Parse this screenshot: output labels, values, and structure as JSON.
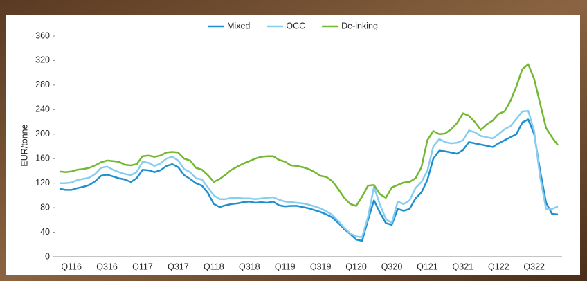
{
  "chart_data": {
    "type": "line",
    "y_label": "EUR/tonne",
    "categories": [
      null,
      null,
      "Q116",
      null,
      null,
      null,
      null,
      null,
      "Q316",
      null,
      null,
      null,
      null,
      null,
      "Q117",
      null,
      null,
      null,
      null,
      null,
      "Q317",
      null,
      null,
      null,
      null,
      null,
      "Q118",
      null,
      null,
      null,
      null,
      null,
      "Q318",
      null,
      null,
      null,
      null,
      null,
      "Q119",
      null,
      null,
      null,
      null,
      null,
      "Q319",
      null,
      null,
      null,
      null,
      null,
      "Q120",
      null,
      null,
      null,
      null,
      null,
      "Q320",
      null,
      null,
      null,
      null,
      null,
      "Q121",
      null,
      null,
      null,
      null,
      null,
      "Q321",
      null,
      null,
      null,
      null,
      null,
      "Q122",
      null,
      null,
      null,
      null,
      null,
      "Q322",
      null,
      null,
      null,
      null
    ],
    "series": [
      {
        "name": "Mixed",
        "color": "#1f8fcf",
        "values": [
          111,
          109,
          109,
          112,
          114,
          117,
          123,
          132,
          134,
          131,
          128,
          126,
          122,
          128,
          142,
          141,
          138,
          141,
          148,
          151,
          146,
          133,
          127,
          120,
          116,
          104,
          86,
          81,
          84,
          86,
          87,
          89,
          90,
          88,
          89,
          88,
          90,
          84,
          82,
          83,
          83,
          81,
          79,
          76,
          73,
          69,
          64,
          55,
          45,
          37,
          28,
          26,
          60,
          92,
          72,
          55,
          52,
          78,
          75,
          78,
          95,
          105,
          125,
          160,
          173,
          172,
          170,
          168,
          174,
          187,
          185,
          183,
          181,
          179,
          185,
          190,
          195,
          200,
          219,
          224,
          200,
          140,
          88,
          70,
          69
        ]
      },
      {
        "name": "OCC",
        "color": "#86cdf0",
        "values": [
          120,
          120,
          121,
          125,
          127,
          129,
          135,
          145,
          147,
          142,
          138,
          135,
          133,
          138,
          155,
          153,
          148,
          152,
          160,
          163,
          157,
          143,
          138,
          128,
          126,
          113,
          100,
          94,
          94,
          96,
          96,
          95,
          95,
          94,
          95,
          96,
          97,
          93,
          90,
          89,
          88,
          87,
          85,
          82,
          79,
          74,
          68,
          58,
          47,
          38,
          33,
          32,
          65,
          114,
          85,
          62,
          55,
          90,
          86,
          92,
          112,
          122,
          140,
          180,
          192,
          187,
          185,
          186,
          190,
          206,
          203,
          197,
          195,
          193,
          200,
          208,
          213,
          225,
          237,
          238,
          205,
          130,
          78,
          78,
          82
        ]
      },
      {
        "name": "De-inking",
        "color": "#72b832",
        "values": [
          139,
          138,
          139,
          142,
          143,
          145,
          149,
          154,
          157,
          156,
          155,
          150,
          149,
          151,
          164,
          165,
          163,
          165,
          170,
          171,
          170,
          160,
          157,
          145,
          142,
          133,
          122,
          127,
          134,
          142,
          147,
          152,
          156,
          160,
          163,
          164,
          164,
          158,
          155,
          149,
          148,
          146,
          143,
          138,
          132,
          130,
          123,
          110,
          96,
          86,
          83,
          98,
          116,
          117,
          102,
          96,
          113,
          117,
          121,
          122,
          128,
          146,
          190,
          205,
          200,
          201,
          208,
          218,
          234,
          230,
          220,
          207,
          216,
          222,
          233,
          237,
          254,
          278,
          306,
          314,
          290,
          250,
          210,
          195,
          182
        ]
      }
    ],
    "ylim": [
      0,
      360
    ],
    "yticks": [
      0,
      40,
      80,
      120,
      160,
      200,
      240,
      280,
      320,
      360
    ],
    "legend": "top"
  }
}
